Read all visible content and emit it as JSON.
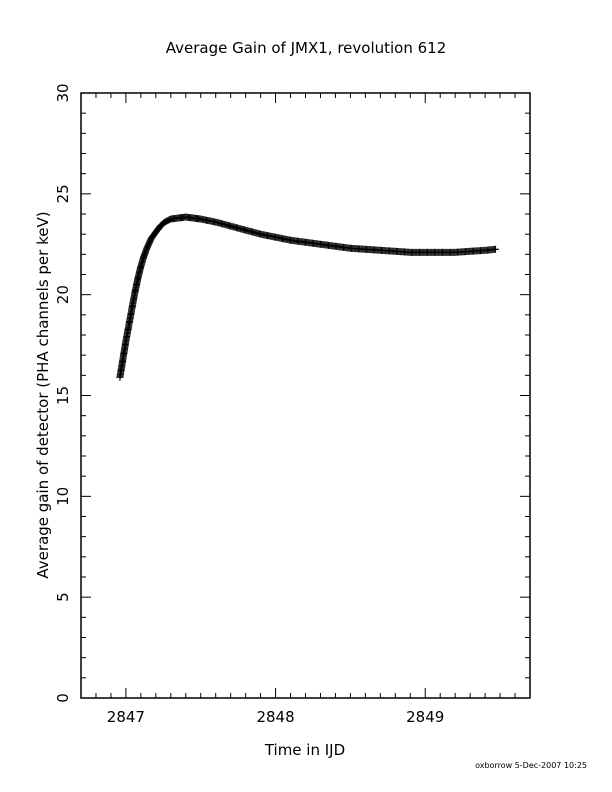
{
  "chart_data": {
    "type": "scatter",
    "title": "Average Gain of JMX1, revolution 612",
    "xlabel": "Time in IJD",
    "ylabel": "Average gain of detector (PHA channels per keV)",
    "xlim": [
      2846.7,
      2849.7
    ],
    "ylim": [
      0,
      30
    ],
    "xticks": [
      2847,
      2848,
      2849
    ],
    "xtick_labels": [
      "2847",
      "2848",
      "2849"
    ],
    "yticks": [
      0,
      5,
      10,
      15,
      20,
      25,
      30
    ],
    "ytick_labels": [
      "0",
      "5",
      "10",
      "15",
      "20",
      "25",
      "30"
    ],
    "grid": false,
    "marker": "plus",
    "series": [
      {
        "x": [
          2846.96,
          2846.98,
          2847.0,
          2847.02,
          2847.04,
          2847.06,
          2847.08,
          2847.1,
          2847.12,
          2847.14,
          2847.17,
          2847.2,
          2847.23,
          2847.26,
          2847.3,
          2847.35,
          2847.4,
          2847.45,
          2847.5,
          2847.6,
          2847.7,
          2847.8,
          2847.9,
          2848.0,
          2848.1,
          2848.2,
          2848.3,
          2848.4,
          2848.5,
          2848.6,
          2848.7,
          2848.8,
          2848.9,
          2849.0,
          2849.1,
          2849.2,
          2849.3,
          2849.4,
          2849.47
        ],
        "y": [
          15.9,
          16.8,
          17.7,
          18.5,
          19.3,
          20.1,
          20.8,
          21.4,
          21.9,
          22.3,
          22.8,
          23.1,
          23.4,
          23.6,
          23.75,
          23.8,
          23.85,
          23.8,
          23.75,
          23.6,
          23.4,
          23.2,
          23.0,
          22.85,
          22.7,
          22.6,
          22.5,
          22.4,
          22.3,
          22.25,
          22.2,
          22.15,
          22.1,
          22.1,
          22.1,
          22.1,
          22.15,
          22.2,
          22.25
        ]
      }
    ]
  },
  "footer": {
    "credit": "oxborrow   5-Dec-2007 10:25"
  }
}
